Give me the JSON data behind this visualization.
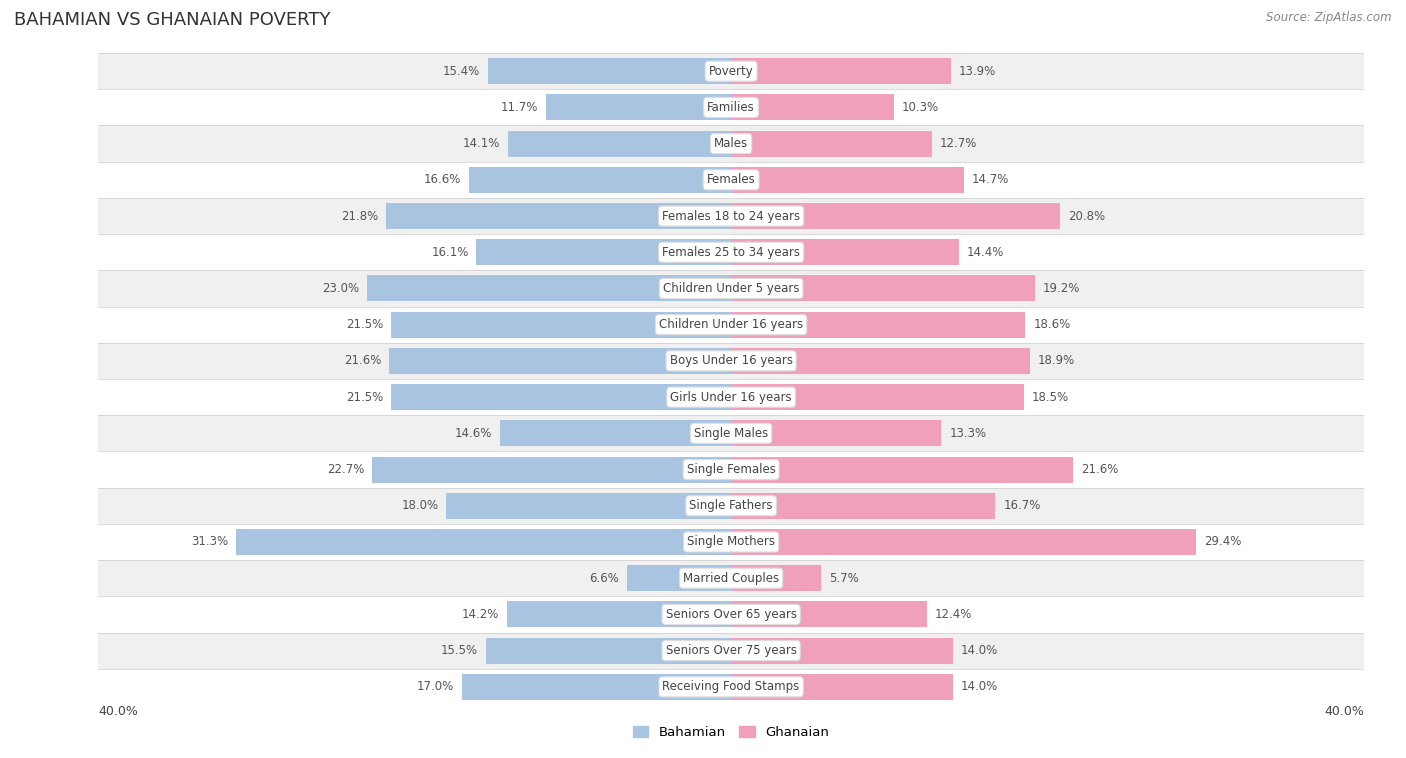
{
  "title": "BAHAMIAN VS GHANAIAN POVERTY",
  "source": "Source: ZipAtlas.com",
  "categories": [
    "Poverty",
    "Families",
    "Males",
    "Females",
    "Females 18 to 24 years",
    "Females 25 to 34 years",
    "Children Under 5 years",
    "Children Under 16 years",
    "Boys Under 16 years",
    "Girls Under 16 years",
    "Single Males",
    "Single Females",
    "Single Fathers",
    "Single Mothers",
    "Married Couples",
    "Seniors Over 65 years",
    "Seniors Over 75 years",
    "Receiving Food Stamps"
  ],
  "bahamian": [
    15.4,
    11.7,
    14.1,
    16.6,
    21.8,
    16.1,
    23.0,
    21.5,
    21.6,
    21.5,
    14.6,
    22.7,
    18.0,
    31.3,
    6.6,
    14.2,
    15.5,
    17.0
  ],
  "ghanaian": [
    13.9,
    10.3,
    12.7,
    14.7,
    20.8,
    14.4,
    19.2,
    18.6,
    18.9,
    18.5,
    13.3,
    21.6,
    16.7,
    29.4,
    5.7,
    12.4,
    14.0,
    14.0
  ],
  "bahamian_color": "#a8c4e0",
  "ghanaian_color": "#f0a0b8",
  "bahamian_label": "Bahamian",
  "ghanaian_label": "Ghanaian",
  "bg_color": "#ffffff",
  "row_color_odd": "#f0f0f0",
  "row_color_even": "#ffffff",
  "sep_color": "#cccccc",
  "label_bg_color": "#ffffff",
  "label_text_color": "#444444",
  "value_color": "#555555",
  "xlim": 40.0,
  "bar_height": 0.72,
  "title_fontsize": 13,
  "label_fontsize": 8.5,
  "value_fontsize": 8.5,
  "source_fontsize": 8.5
}
